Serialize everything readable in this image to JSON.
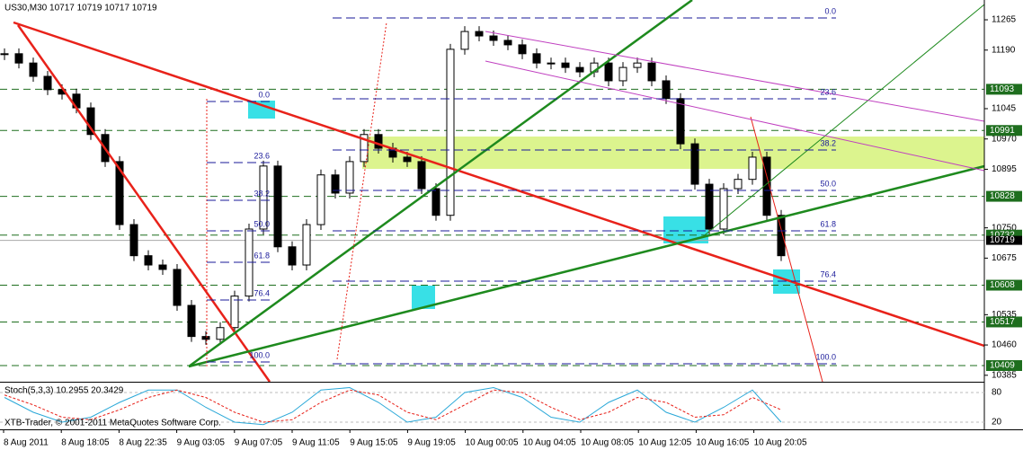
{
  "header": "US30,M30  10717 10719 10717 10719",
  "footer": "XTB-Trader, © 2001-2011 MetaQuotes Software Corp.",
  "chart_data": {
    "type": "candlestick",
    "categories": [
      "8 Aug 2011",
      "8 Aug 18:05",
      "8 Aug 22:35",
      "9 Aug 03:05",
      "9 Aug 07:05",
      "9 Aug 11:05",
      "9 Aug 15:05",
      "9 Aug 19:05",
      "10 Aug 00:05",
      "10 Aug 04:05",
      "10 Aug 08:05",
      "10 Aug 12:05",
      "10 Aug 16:05",
      "10 Aug 20:05"
    ],
    "close": [
      11181,
      11158,
      11125,
      11092,
      11081,
      11047,
      10981,
      10914,
      10758,
      10681,
      10658,
      10647,
      10558,
      10481,
      10474,
      10503,
      10581,
      10747,
      10903,
      10703,
      10658,
      10758,
      10881,
      10836,
      10914,
      10981,
      10947,
      10925,
      10914,
      10847,
      10781,
      11192,
      11236,
      11225,
      11214,
      11203,
      11181,
      11158,
      11158,
      11147,
      11136,
      11158,
      11114,
      11147,
      11158,
      11114,
      11070,
      10958,
      10858,
      10747,
      10847,
      10870,
      10925,
      10781,
      10681
    ],
    "ylim": [
      10369,
      11314
    ],
    "yticks": [
      11265,
      11190,
      11045,
      10970,
      10895,
      10750,
      10675,
      10535,
      10460,
      10385
    ],
    "levels": [
      11093,
      10991,
      10828,
      10732,
      10608,
      10517,
      10409
    ],
    "bid": 10719,
    "fib_labels": [
      "0.0",
      "23.6",
      "38.2",
      "50.0",
      "61.8",
      "76.4",
      "100.0"
    ],
    "stoch": {
      "title": "Stoch(5,3,3) 10.2955 20.3429",
      "ylim": [
        0,
        100
      ],
      "yticks": [
        80,
        20
      ],
      "main": [
        70,
        40,
        20,
        30,
        60,
        85,
        85,
        50,
        20,
        15,
        40,
        85,
        90,
        60,
        20,
        30,
        80,
        90,
        70,
        30,
        20,
        60,
        85,
        40,
        20,
        50,
        85,
        20
      ],
      "signal": [
        75,
        55,
        30,
        25,
        45,
        70,
        85,
        70,
        40,
        20,
        25,
        60,
        85,
        75,
        40,
        25,
        55,
        85,
        80,
        50,
        25,
        40,
        70,
        60,
        30,
        35,
        70,
        45
      ]
    }
  }
}
